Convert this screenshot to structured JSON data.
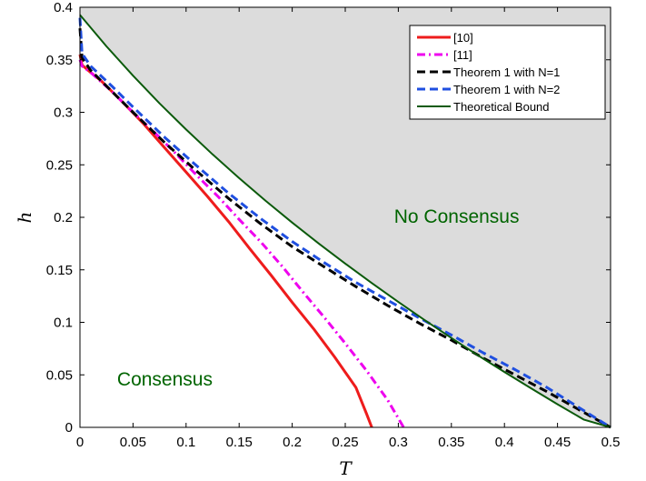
{
  "chart_data": {
    "type": "line",
    "xlabel": "T",
    "ylabel": "h",
    "xlim": [
      0,
      0.5
    ],
    "ylim": [
      0,
      0.4
    ],
    "x_ticks": [
      "0",
      "0.05",
      "0.1",
      "0.15",
      "0.2",
      "0.25",
      "0.3",
      "0.35",
      "0.4",
      "0.45",
      "0.5"
    ],
    "y_ticks": [
      "0",
      "0.05",
      "0.1",
      "0.15",
      "0.2",
      "0.25",
      "0.3",
      "0.35",
      "0.4"
    ],
    "grid": false,
    "legend_position": "top-right",
    "regions": [
      {
        "label": "No Consensus",
        "x": 0.355,
        "y": 0.195,
        "color": "#006400"
      },
      {
        "label": "Consensus",
        "x": 0.08,
        "y": 0.04,
        "color": "#006400"
      }
    ],
    "shaded_region": {
      "above_series": "Theoretical Bound",
      "color": "#dcdcdc"
    },
    "series": [
      {
        "name": "[10]",
        "color": "#ee1c1c",
        "dash": "solid",
        "width": 3,
        "x": [
          0,
          0.002,
          0.01,
          0.02,
          0.04,
          0.06,
          0.08,
          0.1,
          0.12,
          0.14,
          0.16,
          0.18,
          0.2,
          0.22,
          0.24,
          0.26,
          0.27,
          0.275
        ],
        "y": [
          0.355,
          0.345,
          0.338,
          0.33,
          0.31,
          0.289,
          0.266,
          0.243,
          0.22,
          0.196,
          0.17,
          0.145,
          0.119,
          0.094,
          0.067,
          0.038,
          0.013,
          0
        ]
      },
      {
        "name": "[11]",
        "color": "#ee00ee",
        "dash": "dashdot",
        "width": 3,
        "x": [
          0,
          0.002,
          0.01,
          0.03,
          0.05,
          0.07,
          0.09,
          0.11,
          0.13,
          0.15,
          0.17,
          0.19,
          0.21,
          0.23,
          0.25,
          0.27,
          0.29,
          0.305
        ],
        "y": [
          0.35,
          0.344,
          0.338,
          0.32,
          0.3,
          0.281,
          0.261,
          0.24,
          0.22,
          0.198,
          0.177,
          0.154,
          0.129,
          0.105,
          0.08,
          0.054,
          0.026,
          0
        ]
      },
      {
        "name": "Theorem 1 with N=1",
        "color": "#000000",
        "dash": "dashed",
        "width": 3,
        "x": [
          0,
          0.002,
          0.01,
          0.03,
          0.05,
          0.08,
          0.11,
          0.14,
          0.17,
          0.2,
          0.23,
          0.26,
          0.29,
          0.32,
          0.35,
          0.38,
          0.41,
          0.44,
          0.47,
          0.5
        ],
        "y": [
          0.38,
          0.352,
          0.34,
          0.32,
          0.3,
          0.271,
          0.244,
          0.218,
          0.194,
          0.172,
          0.153,
          0.134,
          0.116,
          0.099,
          0.083,
          0.066,
          0.05,
          0.034,
          0.017,
          0
        ]
      },
      {
        "name": "Theorem 1 with N=2",
        "color": "#1f4fe0",
        "dash": "dashed",
        "width": 3,
        "x": [
          0,
          0.002,
          0.01,
          0.03,
          0.05,
          0.08,
          0.11,
          0.14,
          0.17,
          0.2,
          0.23,
          0.26,
          0.29,
          0.32,
          0.35,
          0.38,
          0.41,
          0.44,
          0.47,
          0.5
        ],
        "y": [
          0.39,
          0.356,
          0.344,
          0.325,
          0.305,
          0.276,
          0.249,
          0.223,
          0.199,
          0.177,
          0.157,
          0.138,
          0.121,
          0.104,
          0.088,
          0.071,
          0.055,
          0.038,
          0.019,
          0
        ]
      },
      {
        "name": "Theoretical Bound",
        "color": "#0b5a0b",
        "dash": "solid",
        "width": 2,
        "x": [
          0,
          0.025,
          0.05,
          0.075,
          0.1,
          0.125,
          0.15,
          0.175,
          0.2,
          0.225,
          0.25,
          0.275,
          0.3,
          0.325,
          0.35,
          0.375,
          0.4,
          0.425,
          0.45,
          0.475,
          0.5
        ],
        "y": [
          0.3927,
          0.3628,
          0.3349,
          0.3085,
          0.2836,
          0.2599,
          0.2373,
          0.2157,
          0.195,
          0.1751,
          0.1559,
          0.1374,
          0.1194,
          0.102,
          0.0851,
          0.0686,
          0.0527,
          0.0372,
          0.022,
          0.0073,
          0
        ]
      }
    ]
  }
}
